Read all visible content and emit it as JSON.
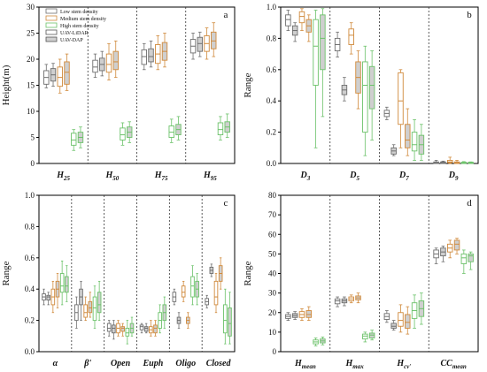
{
  "colors": {
    "low": "#6e6e6e",
    "medium": "#d08a3c",
    "high": "#6cc26a",
    "lidar_fill": "#ffffff",
    "dap_fill": "#cfcfcf",
    "axis": "#000000"
  },
  "legend": {
    "items": [
      "Low stem density",
      "Medium stem density",
      "High stem density",
      "UAV-LiDAR",
      "UAV-DAP"
    ]
  },
  "chart_data": [
    {
      "type": "box",
      "panel": "a",
      "ylabel": "Height(m)",
      "ylim": [
        0,
        30
      ],
      "yticks": [
        0,
        5,
        10,
        15,
        20,
        25,
        30
      ],
      "categories": [
        {
          "main": "H",
          "sub": "25"
        },
        {
          "main": "H",
          "sub": "50"
        },
        {
          "main": "H",
          "sub": "75"
        },
        {
          "main": "H",
          "sub": "95"
        }
      ],
      "series_order": [
        "low-lidar",
        "low-dap",
        "medium-lidar",
        "medium-dap",
        "high-lidar",
        "high-dap"
      ],
      "boxes": [
        [
          [
            14.5,
            15.2,
            16.5,
            17.8,
            19.0
          ],
          [
            14.8,
            15.8,
            17.0,
            18.2,
            19.2
          ],
          [
            13.5,
            14.8,
            16.5,
            18.5,
            20.0
          ],
          [
            14.0,
            15.2,
            17.5,
            19.5,
            21.0
          ],
          [
            2.5,
            3.5,
            4.5,
            5.8,
            6.5
          ],
          [
            3.0,
            4.0,
            5.0,
            6.0,
            7.0
          ]
        ],
        [
          [
            16.5,
            17.5,
            18.5,
            19.8,
            21.0
          ],
          [
            16.8,
            17.8,
            19.0,
            20.2,
            21.5
          ],
          [
            16.0,
            17.5,
            19.0,
            21.0,
            23.0
          ],
          [
            16.5,
            18.0,
            19.5,
            21.5,
            23.5
          ],
          [
            3.5,
            4.5,
            5.5,
            6.8,
            7.8
          ],
          [
            4.0,
            5.0,
            6.0,
            7.0,
            8.0
          ]
        ],
        [
          [
            18.0,
            19.0,
            20.5,
            21.8,
            23.0
          ],
          [
            18.5,
            19.5,
            20.5,
            22.0,
            23.5
          ],
          [
            18.0,
            19.2,
            21.0,
            22.8,
            24.5
          ],
          [
            18.5,
            19.8,
            21.5,
            23.2,
            25.0
          ],
          [
            4.0,
            5.0,
            6.0,
            7.2,
            8.5
          ],
          [
            4.5,
            5.5,
            6.5,
            7.5,
            9.0
          ]
        ],
        [
          [
            20.0,
            21.2,
            22.5,
            23.8,
            25.0
          ],
          [
            20.5,
            21.5,
            23.0,
            24.2,
            25.2
          ],
          [
            20.0,
            21.5,
            23.0,
            24.5,
            26.0
          ],
          [
            20.5,
            22.0,
            23.5,
            25.2,
            27.0
          ],
          [
            4.5,
            5.5,
            6.5,
            7.8,
            9.0
          ],
          [
            5.0,
            6.0,
            7.0,
            8.0,
            9.5
          ]
        ]
      ]
    },
    {
      "type": "box",
      "panel": "b",
      "ylabel": "Range",
      "ylim": [
        0,
        1.0
      ],
      "yticks": [
        0,
        0.2,
        0.4,
        0.6,
        0.8,
        1.0
      ],
      "categories": [
        {
          "main": "D",
          "sub": "3"
        },
        {
          "main": "D",
          "sub": "5"
        },
        {
          "main": "D",
          "sub": "7"
        },
        {
          "main": "D",
          "sub": "9"
        }
      ],
      "series_order": [
        "low-lidar",
        "low-dap",
        "medium-lidar",
        "medium-dap",
        "high-lidar",
        "high-dap"
      ],
      "boxes": [
        [
          [
            0.85,
            0.88,
            0.92,
            0.95,
            0.98
          ],
          [
            0.78,
            0.82,
            0.85,
            0.88,
            0.9
          ],
          [
            0.85,
            0.9,
            0.94,
            0.97,
            0.99
          ],
          [
            0.78,
            0.84,
            0.88,
            0.92,
            0.95
          ],
          [
            0.1,
            0.5,
            0.75,
            0.92,
            0.98
          ],
          [
            0.3,
            0.6,
            0.8,
            0.95,
            0.99
          ]
        ],
        [
          [
            0.68,
            0.72,
            0.76,
            0.8,
            0.84
          ],
          [
            0.4,
            0.44,
            0.47,
            0.5,
            0.55
          ],
          [
            0.7,
            0.76,
            0.82,
            0.86,
            0.9
          ],
          [
            0.35,
            0.45,
            0.55,
            0.65,
            0.72
          ],
          [
            0.05,
            0.2,
            0.5,
            0.65,
            0.75
          ],
          [
            0.15,
            0.35,
            0.5,
            0.62,
            0.72
          ]
        ],
        [
          [
            0.28,
            0.3,
            0.32,
            0.34,
            0.36
          ],
          [
            0.05,
            0.06,
            0.08,
            0.1,
            0.12
          ],
          [
            0.1,
            0.25,
            0.4,
            0.58,
            0.6
          ],
          [
            0.05,
            0.1,
            0.15,
            0.25,
            0.35
          ],
          [
            0.02,
            0.08,
            0.12,
            0.2,
            0.28
          ],
          [
            0.02,
            0.06,
            0.12,
            0.18,
            0.25
          ]
        ],
        [
          [
            0.0,
            0.0,
            0.005,
            0.01,
            0.02
          ],
          [
            0.0,
            0.0,
            0.005,
            0.01,
            0.015
          ],
          [
            0.0,
            0.005,
            0.01,
            0.02,
            0.04
          ],
          [
            0.0,
            0.0,
            0.005,
            0.01,
            0.02
          ],
          [
            0.0,
            0.0,
            0.003,
            0.008,
            0.012
          ],
          [
            0.0,
            0.0,
            0.003,
            0.008,
            0.01
          ]
        ]
      ]
    },
    {
      "type": "box",
      "panel": "c",
      "ylabel": "Range",
      "ylim": [
        0,
        1.0
      ],
      "yticks": [
        0,
        0.2,
        0.4,
        0.6,
        0.8,
        1.0
      ],
      "categories": [
        {
          "main": "α",
          "sub": ""
        },
        {
          "main": "β'",
          "sub": ""
        },
        {
          "main": "Open",
          "sub": ""
        },
        {
          "main": "Euph",
          "sub": ""
        },
        {
          "main": "Oligo",
          "sub": ""
        },
        {
          "main": "Closed",
          "sub": ""
        }
      ],
      "series_order": [
        "low-lidar",
        "low-dap",
        "medium-lidar",
        "medium-dap",
        "high-lidar",
        "high-dap"
      ],
      "boxes": [
        [
          [
            0.3,
            0.33,
            0.35,
            0.37,
            0.4
          ],
          [
            0.3,
            0.33,
            0.35,
            0.36,
            0.38
          ],
          [
            0.25,
            0.3,
            0.35,
            0.4,
            0.45
          ],
          [
            0.28,
            0.35,
            0.4,
            0.45,
            0.5
          ],
          [
            0.3,
            0.38,
            0.42,
            0.5,
            0.58
          ],
          [
            0.32,
            0.38,
            0.42,
            0.48,
            0.55
          ]
        ],
        [
          [
            0.15,
            0.2,
            0.25,
            0.3,
            0.35
          ],
          [
            0.2,
            0.3,
            0.35,
            0.4,
            0.45
          ],
          [
            0.2,
            0.22,
            0.25,
            0.3,
            0.35
          ],
          [
            0.22,
            0.25,
            0.28,
            0.32,
            0.38
          ],
          [
            0.15,
            0.2,
            0.28,
            0.35,
            0.42
          ],
          [
            0.2,
            0.25,
            0.3,
            0.38,
            0.45
          ]
        ],
        [
          [
            0.1,
            0.13,
            0.15,
            0.18,
            0.2
          ],
          [
            0.08,
            0.12,
            0.15,
            0.17,
            0.2
          ],
          [
            0.1,
            0.12,
            0.15,
            0.18,
            0.2
          ],
          [
            0.1,
            0.13,
            0.15,
            0.16,
            0.18
          ],
          [
            0.05,
            0.1,
            0.12,
            0.15,
            0.2
          ],
          [
            0.1,
            0.12,
            0.15,
            0.18,
            0.22
          ]
        ],
        [
          [
            0.12,
            0.14,
            0.16,
            0.17,
            0.18
          ],
          [
            0.12,
            0.13,
            0.15,
            0.16,
            0.18
          ],
          [
            0.1,
            0.12,
            0.14,
            0.16,
            0.2
          ],
          [
            0.1,
            0.12,
            0.15,
            0.17,
            0.2
          ],
          [
            0.12,
            0.15,
            0.2,
            0.25,
            0.3
          ],
          [
            0.15,
            0.2,
            0.25,
            0.3,
            0.35
          ]
        ],
        [
          [
            0.3,
            0.32,
            0.35,
            0.38,
            0.4
          ],
          [
            0.15,
            0.18,
            0.2,
            0.22,
            0.25
          ],
          [
            0.32,
            0.35,
            0.38,
            0.42,
            0.45
          ],
          [
            0.15,
            0.18,
            0.2,
            0.22,
            0.25
          ],
          [
            0.3,
            0.35,
            0.42,
            0.48,
            0.55
          ],
          [
            0.3,
            0.35,
            0.4,
            0.45,
            0.5
          ]
        ],
        [
          [
            0.28,
            0.3,
            0.32,
            0.34,
            0.36
          ],
          [
            0.48,
            0.5,
            0.52,
            0.54,
            0.56
          ],
          [
            0.25,
            0.3,
            0.35,
            0.45,
            0.5
          ],
          [
            0.4,
            0.45,
            0.5,
            0.55,
            0.6
          ],
          [
            0.05,
            0.12,
            0.2,
            0.3,
            0.4
          ],
          [
            0.05,
            0.1,
            0.18,
            0.28,
            0.38
          ]
        ]
      ]
    },
    {
      "type": "box",
      "panel": "d",
      "ylabel": "Range",
      "ylim": [
        0,
        80
      ],
      "yticks": [
        0,
        10,
        20,
        30,
        40,
        50,
        60,
        70,
        80
      ],
      "categories": [
        {
          "main": "H",
          "sub": "mean"
        },
        {
          "main": "H",
          "sub": "max"
        },
        {
          "main": "H",
          "sub": "cv'"
        },
        {
          "main": "CC",
          "sub": "mean"
        }
      ],
      "series_order": [
        "low-lidar",
        "low-dap",
        "medium-lidar",
        "medium-dap",
        "high-lidar",
        "high-dap"
      ],
      "boxes": [
        [
          [
            16,
            17,
            18,
            19,
            20
          ],
          [
            16.5,
            17.5,
            18.5,
            19.5,
            20.5
          ],
          [
            16,
            17.5,
            19,
            20.5,
            22
          ],
          [
            16,
            17.5,
            19,
            21,
            23
          ],
          [
            3,
            4,
            5,
            6,
            7
          ],
          [
            3.5,
            4.5,
            5.5,
            6.5,
            7.5
          ]
        ],
        [
          [
            23,
            24.5,
            26,
            27,
            28
          ],
          [
            23.5,
            25,
            26,
            27,
            28
          ],
          [
            25,
            26,
            27,
            28,
            29
          ],
          [
            25,
            26.5,
            27.5,
            28.5,
            30
          ],
          [
            5,
            6.5,
            8,
            9,
            10
          ],
          [
            6,
            7,
            8.5,
            9.5,
            11
          ]
        ],
        [
          [
            15,
            16.5,
            18,
            19.5,
            21
          ],
          [
            11,
            12,
            13,
            14.5,
            16
          ],
          [
            10,
            13,
            16,
            20,
            24
          ],
          [
            9,
            12,
            15,
            19,
            23
          ],
          [
            12,
            17,
            21,
            25,
            29
          ],
          [
            14,
            18,
            22,
            26,
            30
          ]
        ],
        [
          [
            45,
            48,
            50,
            52,
            53
          ],
          [
            46,
            49,
            51,
            53,
            54
          ],
          [
            48,
            51,
            53,
            55,
            57
          ],
          [
            50,
            52,
            55,
            57,
            58
          ],
          [
            40,
            45,
            48,
            50,
            52
          ],
          [
            42,
            46,
            49,
            50,
            51
          ]
        ]
      ]
    }
  ]
}
